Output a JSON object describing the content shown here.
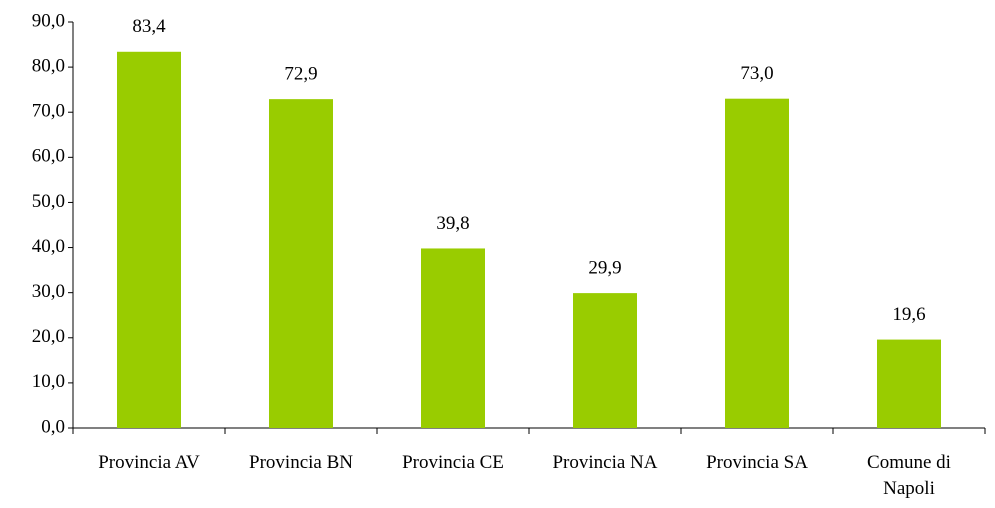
{
  "chart_data": {
    "type": "bar",
    "categories": [
      "Provincia AV",
      "Provincia BN",
      "Provincia CE",
      "Provincia NA",
      "Provincia SA",
      "Comune di Napoli"
    ],
    "values": [
      83.4,
      72.9,
      39.8,
      29.9,
      73.0,
      19.6
    ],
    "value_labels": [
      "83,4",
      "72,9",
      "39,8",
      "29,9",
      "73,0",
      "19,6"
    ],
    "color": "#99cc00",
    "ylim": [
      0,
      90
    ],
    "yticks": [
      {
        "value": 0,
        "label": "0,0"
      },
      {
        "value": 10,
        "label": "10,0"
      },
      {
        "value": 20,
        "label": "20,0"
      },
      {
        "value": 30,
        "label": "30,0"
      },
      {
        "value": 40,
        "label": "40,0"
      },
      {
        "value": 50,
        "label": "50,0"
      },
      {
        "value": 60,
        "label": "60,0"
      },
      {
        "value": 70,
        "label": "70,0"
      },
      {
        "value": 80,
        "label": "80,0"
      },
      {
        "value": 90,
        "label": "90,0"
      }
    ],
    "grid": false
  }
}
